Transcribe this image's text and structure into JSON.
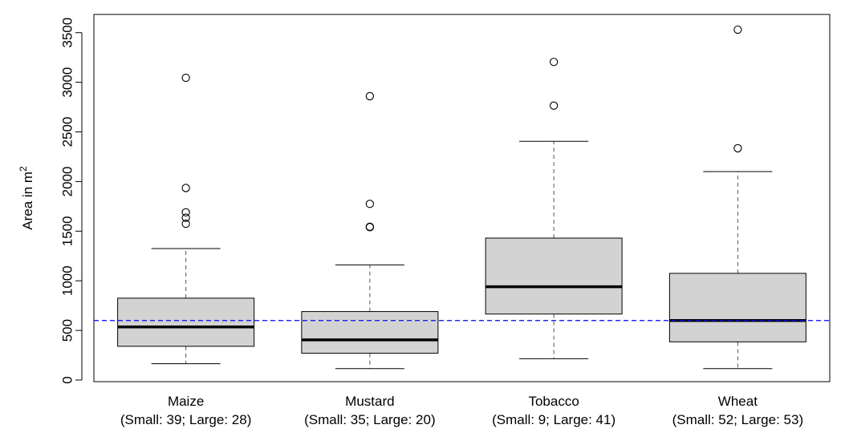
{
  "chart_data": {
    "type": "boxplot",
    "ylabel": "Area in m",
    "ylabel_superscript": "2",
    "ylim": [
      0,
      3600
    ],
    "yticks": [
      "0",
      "500",
      "1000",
      "1500",
      "2000",
      "2500",
      "3000",
      "3500"
    ],
    "reference_line": {
      "y": 600,
      "color": "#0000ff",
      "style": "dashed"
    },
    "box_fill": "#d3d3d3",
    "categories": [
      {
        "name": "Maize",
        "subtitle": "(Small: 39; Large: 28)",
        "whisker_low": 165,
        "q1": 340,
        "median": 535,
        "q3": 825,
        "whisker_high": 1325,
        "outliers": [
          1575,
          1635,
          1690,
          1935,
          3045
        ]
      },
      {
        "name": "Mustard",
        "subtitle": "(Small: 35; Large: 20)",
        "whisker_low": 115,
        "q1": 270,
        "median": 405,
        "q3": 690,
        "whisker_high": 1160,
        "outliers": [
          1540,
          1545,
          1775,
          2860
        ]
      },
      {
        "name": "Tobacco",
        "subtitle": "(Small: 9; Large: 41)",
        "whisker_low": 215,
        "q1": 665,
        "median": 940,
        "q3": 1430,
        "whisker_high": 2405,
        "outliers": [
          2765,
          3205
        ]
      },
      {
        "name": "Wheat",
        "subtitle": "(Small: 52; Large: 53)",
        "whisker_low": 115,
        "q1": 385,
        "median": 600,
        "q3": 1075,
        "whisker_high": 2100,
        "outliers": [
          2335,
          3530
        ]
      }
    ]
  }
}
